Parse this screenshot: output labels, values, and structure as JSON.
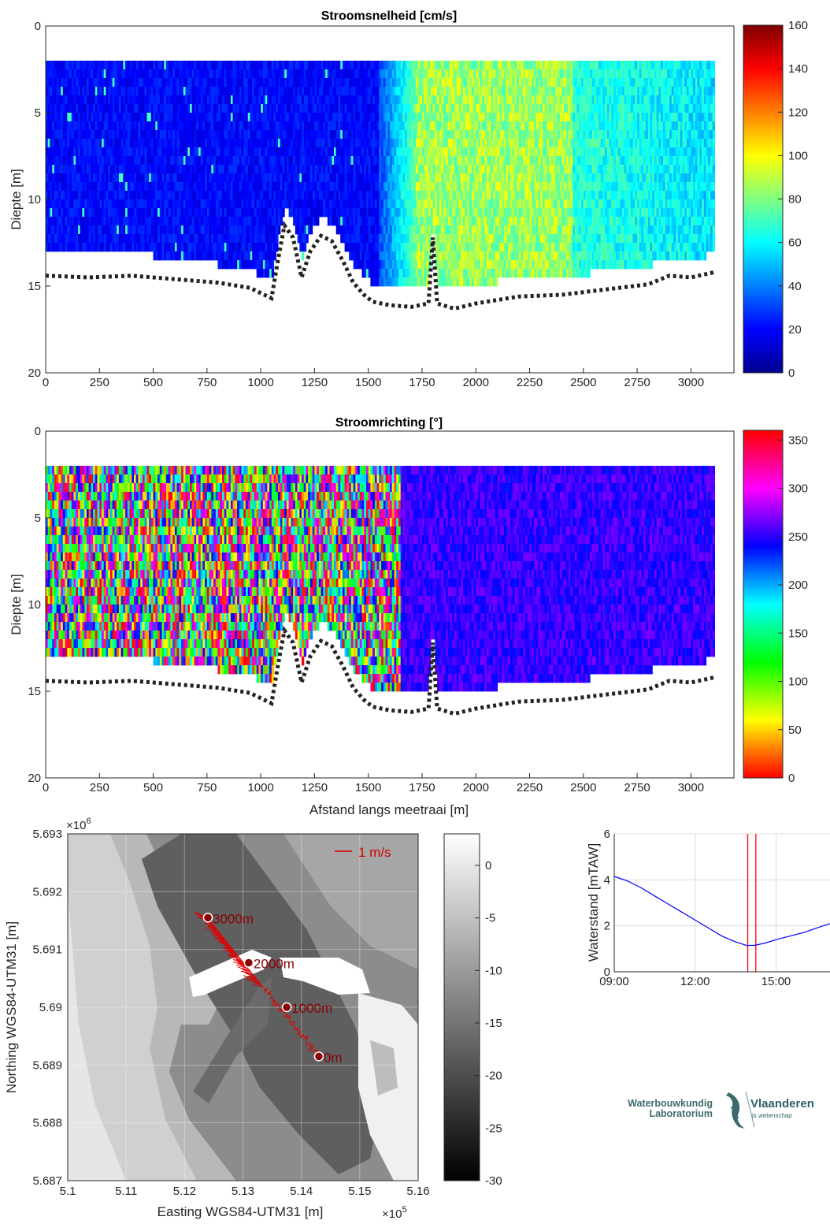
{
  "chart_data": [
    {
      "type": "heatmap",
      "title": "Stroomsnelheid [cm/s]",
      "xlabel": "",
      "ylabel": "Diepte [m]",
      "xlim": [
        0,
        3200
      ],
      "ylim": [
        20,
        0
      ],
      "xticks": [
        0,
        250,
        500,
        750,
        1000,
        1250,
        1500,
        1750,
        2000,
        2250,
        2500,
        2750,
        3000
      ],
      "yticks": [
        0,
        5,
        10,
        15,
        20
      ],
      "colorbar": {
        "colormap": "jet",
        "range": [
          0,
          160
        ],
        "ticks": [
          0,
          20,
          40,
          60,
          80,
          100,
          120,
          140,
          160
        ]
      },
      "data_extent": {
        "x": [
          0,
          3110
        ],
        "depth_top": 2
      },
      "zones": [
        {
          "x_range": [
            0,
            1700
          ],
          "mean_value": 15
        },
        {
          "x_range": [
            1700,
            2500
          ],
          "mean_value": 85
        },
        {
          "x_range": [
            2500,
            3110
          ],
          "mean_value": 60
        }
      ],
      "bed_profile": {
        "x": [
          0,
          200,
          400,
          600,
          800,
          950,
          1050,
          1080,
          1110,
          1150,
          1190,
          1230,
          1280,
          1330,
          1380,
          1430,
          1480,
          1520,
          1600,
          1700,
          1780,
          1800,
          1820,
          1900,
          2000,
          2200,
          2400,
          2600,
          2800,
          2900,
          3000,
          3110
        ],
        "depth": [
          14.4,
          14.5,
          14.4,
          14.6,
          14.8,
          15.1,
          15.7,
          13.5,
          11.5,
          12.2,
          14.5,
          13.0,
          12.1,
          12.4,
          13.5,
          14.8,
          15.5,
          15.9,
          16.1,
          16.2,
          16.0,
          12.2,
          16.0,
          16.3,
          16.0,
          15.6,
          15.5,
          15.2,
          14.9,
          14.4,
          14.5,
          14.2
        ]
      }
    },
    {
      "type": "heatmap",
      "title": "Stroomrichting [°]",
      "xlabel": "Afstand langs meetraai [m]",
      "ylabel": "Diepte [m]",
      "xlim": [
        0,
        3200
      ],
      "ylim": [
        20,
        0
      ],
      "xticks": [
        0,
        250,
        500,
        750,
        1000,
        1250,
        1500,
        1750,
        2000,
        2250,
        2500,
        2750,
        3000
      ],
      "yticks": [
        0,
        5,
        10,
        15,
        20
      ],
      "colorbar": {
        "colormap": "hsv",
        "range": [
          0,
          360
        ],
        "ticks": [
          0,
          50,
          100,
          150,
          200,
          250,
          300,
          350
        ]
      },
      "data_extent": {
        "x": [
          0,
          3110
        ],
        "depth_top": 2
      },
      "zones": [
        {
          "x_range": [
            0,
            1650
          ],
          "mean_value": "random 0-360"
        },
        {
          "x_range": [
            1650,
            3110
          ],
          "mean_value": 250
        }
      ]
    },
    {
      "type": "heatmap",
      "title": "",
      "xlabel": "Easting WGS84-UTM31 [m]",
      "ylabel": "Northing WGS84-UTM31 [m]",
      "x_exponent_label": "×10",
      "x_exponent": "5",
      "y_exponent_label": "×10",
      "y_exponent": "6",
      "xlim": [
        510000,
        516000
      ],
      "ylim": [
        5687000,
        5693000
      ],
      "xticks": [
        "5.1",
        "5.11",
        "5.12",
        "5.13",
        "5.14",
        "5.15",
        "5.16"
      ],
      "yticks": [
        "5.687",
        "5.688",
        "5.689",
        "5.69",
        "5.691",
        "5.692",
        "5.693"
      ],
      "colorbar": {
        "colormap": "gray",
        "range": [
          -30,
          3
        ],
        "ticks": [
          0,
          -5,
          -10,
          -15,
          -20,
          -25,
          -30
        ]
      },
      "scale_arrow_label": "1 m/s",
      "markers": [
        {
          "label": "3000m",
          "easting": 512400,
          "northing": 5691550
        },
        {
          "label": "2000m",
          "easting": 513100,
          "northing": 5690770
        },
        {
          "label": "1000m",
          "easting": 513750,
          "northing": 5690000
        },
        {
          "label": "0m",
          "easting": 514300,
          "northing": 5689150
        }
      ]
    },
    {
      "type": "line",
      "title": "",
      "xlabel": "",
      "ylabel": "Waterstand [mTAW]",
      "xticks": [
        "09:00",
        "12:00",
        "15:00"
      ],
      "xlim_hours": [
        9,
        17
      ],
      "ylim": [
        0,
        6
      ],
      "yticks": [
        0,
        2,
        4,
        6
      ],
      "grid": true,
      "series": [
        {
          "x_hours": [
            9.0,
            9.5,
            10.0,
            10.5,
            11.0,
            11.5,
            12.0,
            12.5,
            13.0,
            13.5,
            13.9,
            14.2,
            14.6,
            15.0,
            15.5,
            16.0,
            16.5,
            17.0
          ],
          "y": [
            4.15,
            3.95,
            3.65,
            3.3,
            2.95,
            2.6,
            2.25,
            1.9,
            1.55,
            1.3,
            1.15,
            1.15,
            1.25,
            1.4,
            1.55,
            1.7,
            1.9,
            2.1
          ],
          "color": "#0000ff"
        }
      ],
      "vlines_hours": [
        13.95,
        14.25
      ],
      "vline_color": "#ff0000"
    }
  ],
  "logo": {
    "org_line1": "Waterbouwkundig",
    "org_line2": "Laboratorium",
    "brand": "Vlaanderen",
    "brand_sub": "is wetenschap"
  }
}
